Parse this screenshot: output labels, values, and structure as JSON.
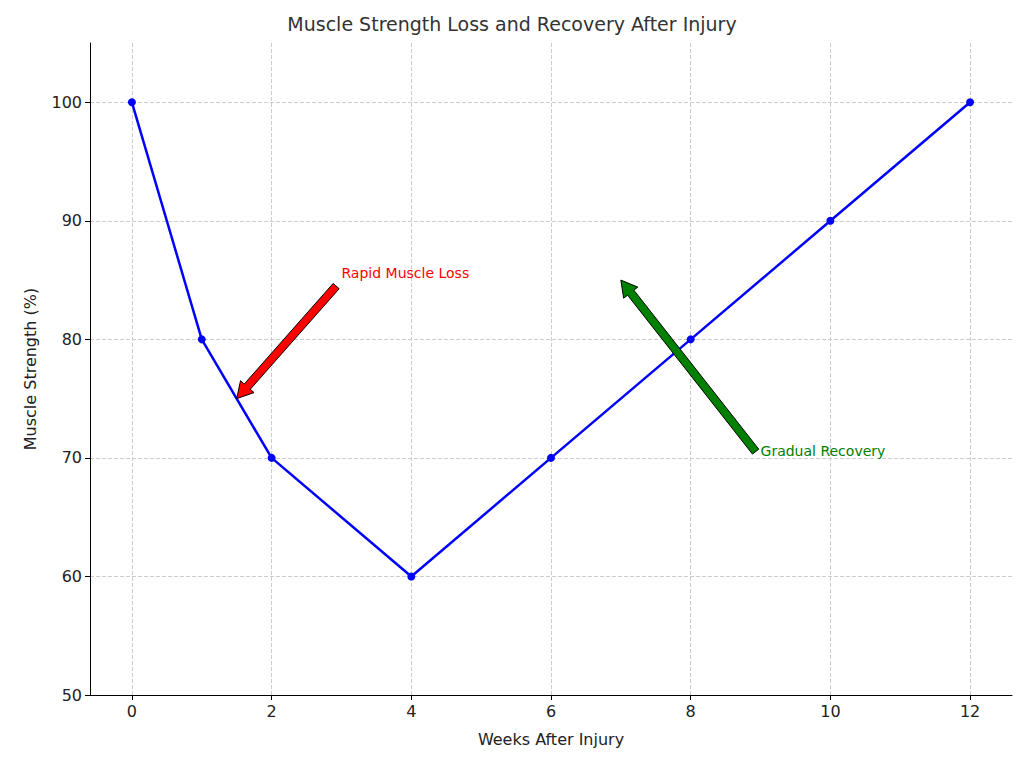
{
  "chart_data": {
    "type": "line",
    "title": "Muscle Strength Loss and Recovery After Injury",
    "x_label": "Weeks After Injury",
    "y_label": "Muscle Strength (%)",
    "x": [
      0,
      1,
      2,
      4,
      6,
      8,
      10,
      12
    ],
    "values": [
      100,
      80,
      70,
      60,
      70,
      80,
      90,
      100
    ],
    "color": "#0000ff",
    "marker": "circle",
    "line_style": "solid",
    "xlim": [
      -0.6,
      12.6
    ],
    "ylim": [
      50,
      105
    ],
    "xticks": [
      0,
      2,
      4,
      6,
      8,
      10,
      12
    ],
    "yticks": [
      50,
      60,
      70,
      80,
      90,
      100
    ],
    "grid": true,
    "annotations": [
      {
        "text": "Rapid Muscle Loss",
        "x": 3,
        "y": 85,
        "arrow_to": [
          1.5,
          75
        ],
        "color": "#ff0000"
      },
      {
        "text": "Gradual Recovery",
        "x": 9,
        "y": 70,
        "arrow_to": [
          7,
          85
        ],
        "color": "#008000"
      }
    ]
  }
}
